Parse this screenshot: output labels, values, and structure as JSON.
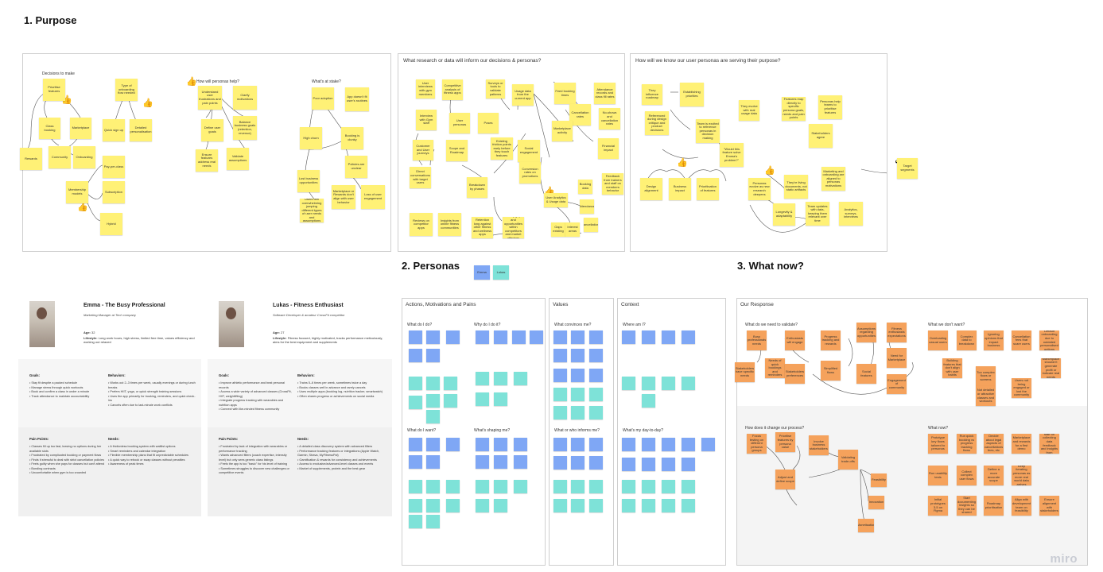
{
  "sections": {
    "purpose": "1. Purpose",
    "personas": "2. Personas",
    "what_now": "3. What now?"
  },
  "purpose_frame": {
    "decisions_title": "Decisions to make",
    "personas_help": "How will personas help?",
    "whats_at_stake": "What's at stake?",
    "stickies": [
      "Prioritise features",
      "Type of onboarding flow needed",
      "Class booking",
      "Marketplace",
      "Community",
      "Onboarding",
      "Rewards",
      "Quick sign up",
      "Detailed personalisation",
      "Membership models",
      "Pay-per-class",
      "Subscription",
      "Hybrid",
      "Understand user frustrations and pain points",
      "Clarify motivations",
      "Define user goals",
      "Balance business goals (retention, revenue)",
      "Ensure features address real needs",
      "Validate assumptions",
      "Poor adoption",
      "App doesn't fit user's routines",
      "High churn",
      "Booking is clunky",
      "Policies are unclear",
      "Lost business opportunities",
      "Marketplace or Rewards don't align with user behavior",
      "Loss of user engagement",
      "Users feel overwhelming jumping different types of user needs and assumptions"
    ]
  },
  "research_frame": {
    "title": "What research or data will inform our decisions & personas?",
    "stickies": [
      "User interviews with gym members",
      "Competitive analysis of fitness apps",
      "Surveys or tools to validate patterns",
      "Usage data from the current app",
      "Feed booking times",
      "Attendance records and class fill rates",
      "Interview with Gym staff",
      "User personas",
      "Poses",
      "Cancellation rates",
      "No-shows and cancellation rates",
      "Customer and User journeys",
      "Scope and Roadmap",
      "Existing friction points early before they touch features",
      "Social engagement",
      "Marketplace activity",
      "Financial impact",
      "Direct conversations with target users",
      "Breakdown by phases",
      "Conversion rates on promotions",
      "Feedback from trainers and staff on members behavior",
      "Reviews on competitor apps",
      "Insights from online fitness communities",
      "Retention long against other fitness and wellness apps",
      "User Analytics & Usage data",
      "Identify gaps and opportunities within competitors and market offerings",
      "Booking data",
      "Attendance",
      "Cancellations",
      "Gaps existing",
      "Interest areas"
    ]
  },
  "serving_frame": {
    "title": "How will we know our user personas are serving their purpose?",
    "stickies": [
      "They influence roadmap",
      "Establishing priorities",
      "Referenced during design critique and product decisions",
      "They evolve with real usage data",
      "Features map directly to specific persona goals, needs and pain points",
      "Personas help teams to prioritise features",
      "Stakeholders agree",
      "Team is excited to reference personas in decision making",
      "\"Would this feature solve Emma's problem?\"",
      "Design alignment",
      "Business impact",
      "Prioritisation of features",
      "Personas evolve as new research deepens",
      "They're living documents, not static artifacts",
      "Marketing and onboarding are aligned to personas motivations",
      "Target segments",
      "Longevity & adaptability",
      "Team updates with data, keeping them relevant over time",
      "Analytics, surveys, interviews"
    ]
  },
  "personas_stickies": [
    "Emma",
    "Lukas"
  ],
  "persona_emma": {
    "name": "Emma - The Busy Professional",
    "role": "Marketing Manager at Tech company",
    "age_label": "Age:",
    "age": "32",
    "lifestyle_label": "Lifestyle:",
    "lifestyle": "Long work hours, high stress, limited free time, values efficiency and working out relaxed",
    "goals_label": "Goals:",
    "goals": [
      "Stay fit despite a packed schedule",
      "Manage stress through quick workouts",
      "Book and confirm a class in under a minute",
      "Track attendance to maintain accountability"
    ],
    "behaviors_label": "Behaviors:",
    "behaviors": [
      "Works out 2–3 times per week, usually evenings or during lunch breaks",
      "Prefers HIIT, yoga, or quick strength training sessions",
      "Uses the app primarily for booking, reminders, and quick check-ins",
      "Cancels often due to last-minute work conflicts"
    ],
    "pain_label": "Pain Points:",
    "pain_points": [
      "Classes fill up too fast, leaving no options during her available slots",
      "Frustrated by complicated booking or payment flows",
      "Finds it stressful to deal with strict cancellation policies",
      "Feels guilty when she pays for classes but can't attend",
      "Bonding contracts",
      "Uncomfortable when gym is too crowded"
    ],
    "needs_label": "Needs:",
    "needs": [
      "A frictionless booking system with waitlist options",
      "Smart reminders and calendar integration",
      "Flexible membership plans that fit unpredictable schedules",
      "A quick way to rebook or swap classes without penalties",
      "Awareness of peak times"
    ]
  },
  "persona_lukas": {
    "name": "Lukas - Fitness Enthusiast",
    "role": "Software Developer & amateur CrossFit competitor",
    "age_label": "Age:",
    "age": "27",
    "lifestyle_label": "Lifestyle:",
    "lifestyle": "Fitness focused, highly motivated, tracks performance meticulously, aims for the best equipment and supplements",
    "goals_label": "Goals:",
    "goals": [
      "Improve athletic performance and beat personal records",
      "Access a wide variety of advanced classes (CrossFit, HIIT, weightlifting)",
      "Integrate progress tracking with wearables and nutrition apps",
      "Connect with like-minded fitness community"
    ],
    "behaviors_label": "Behaviors:",
    "behaviors": [
      "Trains 5–6 times per week, sometimes twice a day",
      "Books classes well in advance and rarely cancels",
      "Uses multiple apps (booking log, nutrition tracker, smartwatch)",
      "Often shares progress or achievements on social media"
    ],
    "pain_label": "Pain Points:",
    "pain_points": [
      "Frustrated by lack of integration with wearables or performance tracking",
      "Wants advanced filters (coach expertise, intensity level) but only sees generic class listings",
      "Feels the app is too \"basic\" for his level of training",
      "Sometimes struggles to discover new challenges or competitive events"
    ],
    "needs_label": "Needs:",
    "needs": [
      "A detailed class discovery system with advanced filters",
      "Performance tracking features or integrations (Apple Watch, Garmin, Strava, MyFitnessPal)",
      "Gamification & rewards for consistency and achievements",
      "Access to exclusive/advanced-level classes and events",
      "Market of supplements, protein and the best gear"
    ]
  },
  "amp_frame": {
    "title": "Actions, Motivations and Pains",
    "q1": "What do I do?",
    "q2": "Why do I do it?",
    "q3": "What do I want?",
    "q4": "What's shaping me?"
  },
  "values_frame": {
    "title": "Values",
    "q1": "What convinces me?",
    "q2": "What or who informs me?"
  },
  "context_frame": {
    "title": "Context",
    "q1": "Where am I?",
    "q2": "What's my day-to-day?"
  },
  "response_frame": {
    "title": "Our Response",
    "validate_q": "What do we need to validate?",
    "dont_want_q": "What we don't want?",
    "change_q": "How does it change our process?",
    "what_now_q": "What now?",
    "validate_stickies": [
      "Busy professionals needs",
      "Enthusiasts will engage",
      "Progress tracking and rewards",
      "Assumptions regarding opportunities",
      "Fitness enthusiasts expectations",
      "Needs of quick bookings and reminders",
      "Stakeholders preferences",
      "Simplified flows",
      "Social features",
      "Need for Marketplace",
      "Engagement of community",
      "Stakeholders have specific needs"
    ],
    "dont_want_stickies": [
      "Overloading casual users",
      "Complex data to breakdown",
      "Ignoring opinions that impact business",
      "Cancellation fees that scare users",
      "Default onboarding due to outdated personalised options",
      "Building features that don't align with user habits",
      "Too complex flows or screens",
      "Not detailed or attractive classes and workouts",
      "Users not being engaged or lost the community",
      "Marketplace shouldn't generate profit or indicate real needs"
    ],
    "change_stickies": [
      "Focus testing on different persona groups",
      "Prioritise features by persona value",
      "Involve business stakeholders",
      "Validating trade-offs",
      "Adjust and define scope",
      "Feasibility",
      "Innovation",
      "Monetisation"
    ],
    "what_now_stickies": [
      "Prototype key flows tailored to personas",
      "Run quick booking vs progress tracking flows",
      "Decide about legal aspects of cancellations fees, etc",
      "Marketplace and rewards for a first demo",
      "Then gym staff on collecting data feedback and insights from members",
      "Run usability tests",
      "Collect complex user flows",
      "Define a more accurate scope",
      "Keep iterating personas as more real world data arrives",
      "Initial prototypes 3-5 on Figma",
      "Start documenting insights so they can be shared",
      "Roadmap prioritisation",
      "Align with development team on feasibility",
      "Ensure alignment with stakeholders"
    ]
  },
  "watermark": "miro"
}
